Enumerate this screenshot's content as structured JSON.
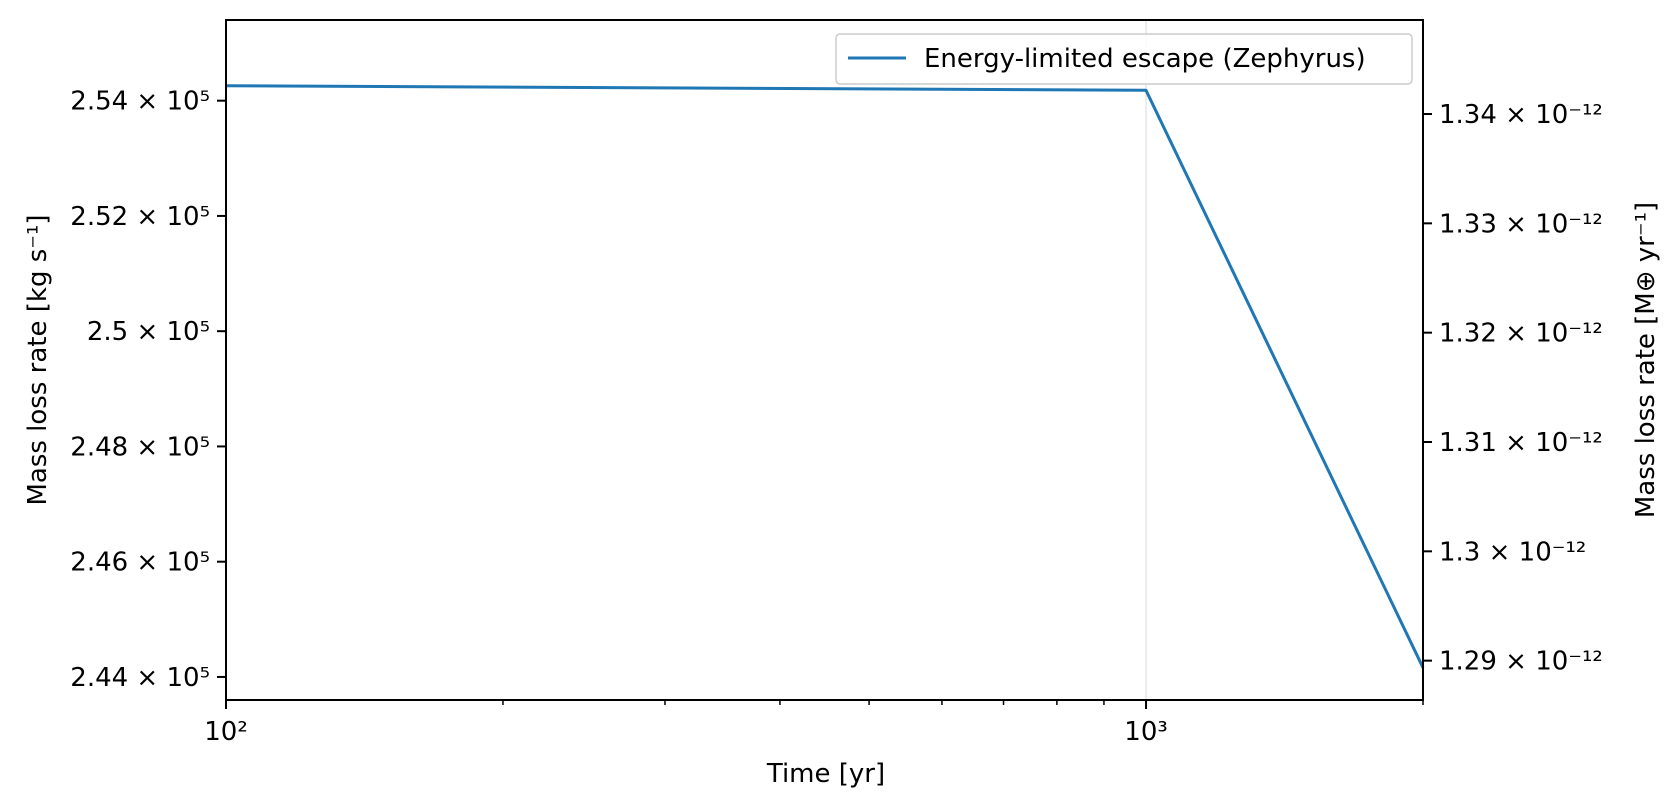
{
  "chart_data": {
    "type": "line",
    "xscale": "log",
    "xlabel": "Time [yr]",
    "ylabel_left": "Mass loss rate [kg s⁻¹]",
    "ylabel_right": "Mass loss rate [M⊕ yr⁻¹]",
    "xlim": [
      100,
      2000
    ],
    "ylim_left": [
      243600,
      255400
    ],
    "ylim_right": [
      1.2864e-12,
      1.3486e-12
    ],
    "x_ticks": [
      {
        "value": 100,
        "label": "10²"
      },
      {
        "value": 1000,
        "label": "10³"
      }
    ],
    "y_ticks_left": [
      {
        "value": 244000,
        "label": "2.44 × 10⁵"
      },
      {
        "value": 246000,
        "label": "2.46 × 10⁵"
      },
      {
        "value": 248000,
        "label": "2.48 × 10⁵"
      },
      {
        "value": 250000,
        "label": "2.5 × 10⁵"
      },
      {
        "value": 252000,
        "label": "2.52 × 10⁵"
      },
      {
        "value": 254000,
        "label": "2.54 × 10⁵"
      }
    ],
    "y_ticks_right": [
      {
        "value": 1.29e-12,
        "label": "1.29 × 10⁻¹²"
      },
      {
        "value": 1.3e-12,
        "label": "1.3 × 10⁻¹²"
      },
      {
        "value": 1.31e-12,
        "label": "1.31 × 10⁻¹²"
      },
      {
        "value": 1.32e-12,
        "label": "1.32 × 10⁻¹²"
      },
      {
        "value": 1.33e-12,
        "label": "1.33 × 10⁻¹²"
      },
      {
        "value": 1.34e-12,
        "label": "1.34 × 10⁻¹²"
      }
    ],
    "series": [
      {
        "name": "Energy-limited escape (Zephyrus)",
        "color": "#1f77b4",
        "x": [
          100,
          1000,
          2000
        ],
        "y": [
          254260,
          254180,
          244160
        ]
      }
    ],
    "vertical_gridlines_at": [
      1000
    ],
    "legend_position": "upper right"
  }
}
